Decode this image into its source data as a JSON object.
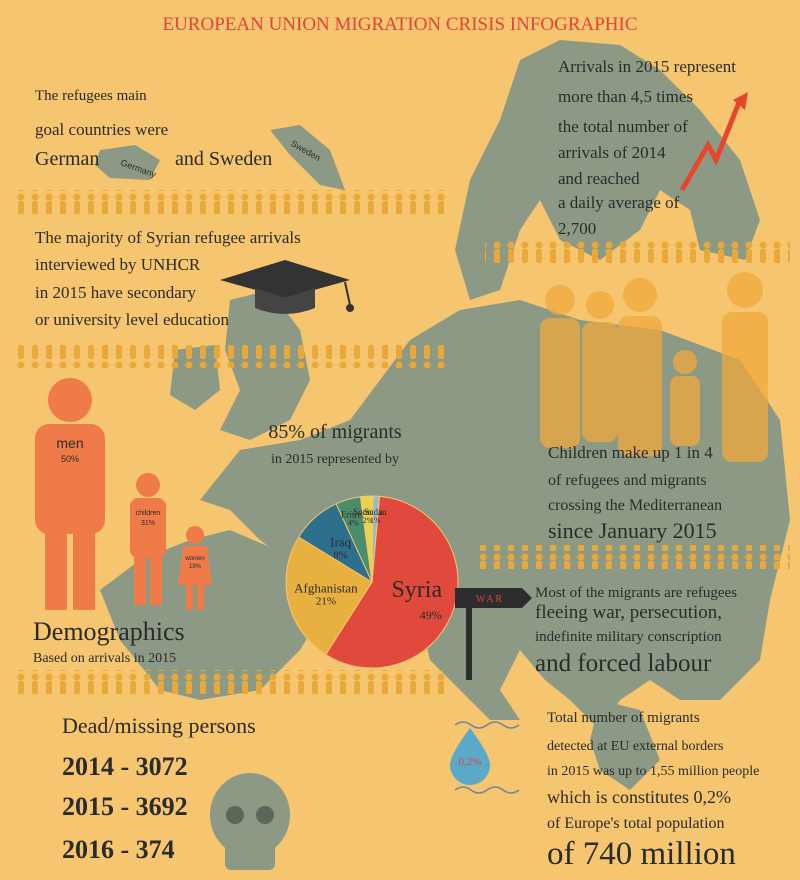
{
  "title": "EUROPEAN UNION MIGRATION CRISIS INFOGRAPHIC",
  "goal_countries": {
    "lines": [
      "The refugees main",
      "goal countries were",
      "German",
      "and Sweden"
    ],
    "map_labels": [
      "Germany",
      "Sweden"
    ]
  },
  "arrivals": {
    "lines": [
      "Arrivals in 2015 represent",
      "more than 4,5 times",
      "the total number of",
      "arrivals of 2014",
      "and reached",
      "a daily average of",
      "2,700"
    ]
  },
  "education": {
    "lines": [
      "The majority of Syrian refugee arrivals",
      "interviewed by UNHCR",
      "in 2015 have secondary",
      "or university level education"
    ]
  },
  "children": {
    "lines": [
      "Children make up 1 in 4",
      "of refugees and migrants",
      "crossing the Mediterranean",
      "since January 2015"
    ]
  },
  "demographics": {
    "title": "Demographics",
    "subtitle": "Based on arrivals in 2015",
    "groups": [
      {
        "label": "men",
        "share": "50%"
      },
      {
        "label": "children",
        "share": "31%"
      },
      {
        "label": "women",
        "share": "19%"
      }
    ]
  },
  "pie": {
    "type": "pie",
    "title_lines": [
      "85% of migrants",
      "in 2015 represented by"
    ],
    "categories": [
      "Syria",
      "Afghanistan",
      "Iraq",
      "Eritrea",
      "Somalia",
      "Sudan"
    ],
    "values": [
      49,
      21,
      8,
      4,
      2,
      1
    ],
    "value_labels": [
      "49%",
      "21%",
      "8%",
      "4%",
      "2%",
      "1%"
    ],
    "colors": [
      "#e0493b",
      "#e8b03f",
      "#2f6f8e",
      "#4b8c6b",
      "#e8d34c",
      "#93bccb"
    ]
  },
  "war": {
    "sign": "WAR",
    "lines": [
      "Most of the migrants are refugees",
      "fleeing war, persecution,",
      "indefinite military conscription",
      "and forced labour"
    ]
  },
  "dead_missing": {
    "title": "Dead/missing persons",
    "rows": [
      "2014 - 3072",
      "2015 - 3692",
      "2016 - 374"
    ]
  },
  "total": {
    "drop_label": "0,2%",
    "lines": [
      "Total number of migrants",
      "detected at EU external borders",
      "in 2015 was up to 1,55 million people",
      "which is constitutes 0,2%",
      "of Europe's total population",
      "of 740 million"
    ]
  }
}
